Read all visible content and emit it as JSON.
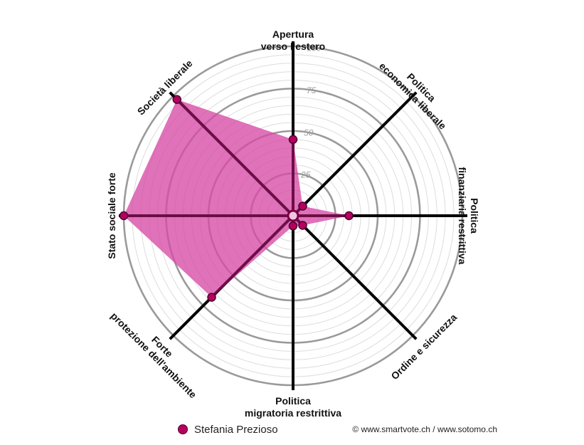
{
  "chart_data": {
    "type": "radar",
    "axes": [
      {
        "label": [
          "Apertura",
          "verso l'estero"
        ]
      },
      {
        "label": [
          "Politica",
          "economica liberale"
        ]
      },
      {
        "label": [
          "Politica",
          "finanziaria restrittiva"
        ]
      },
      {
        "label": [
          "Ordine e sicurezza"
        ]
      },
      {
        "label": [
          "Politica",
          "migratoria restrittiva"
        ]
      },
      {
        "label": [
          "Forte",
          "protezione dell'ambiente"
        ]
      },
      {
        "label": [
          "Stato sociale forte"
        ]
      },
      {
        "label": [
          "Società liberale"
        ]
      }
    ],
    "range": [
      0,
      100
    ],
    "ticks": [
      25,
      50,
      75,
      100
    ],
    "series": [
      {
        "name": "Stefania Prezioso",
        "values": [
          45,
          8,
          33,
          8,
          6,
          68,
          100,
          97
        ],
        "color": "#b5005e",
        "fill": "#d64aa5",
        "stroke": "#7a0045"
      }
    ]
  },
  "legend": {
    "label": "Stefania Prezioso"
  },
  "credits": "© www.smartvote.ch / www.sotomo.ch"
}
